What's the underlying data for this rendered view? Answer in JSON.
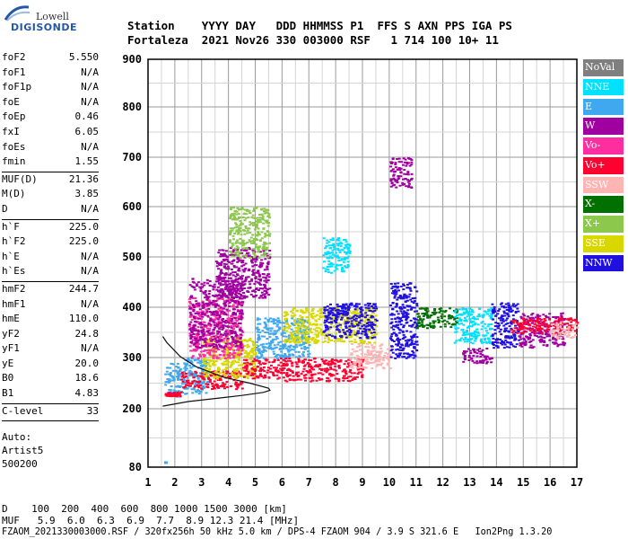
{
  "logo": {
    "brand": "Lowell",
    "product": "DIGISONDE"
  },
  "header": {
    "row1": "Station    YYYY DAY   DDD HHMMSS P1  FFS S AXN PPS IGA PS",
    "row2": "Fortaleza  2021 Nov26 330 003000 RSF   1 714 100 10+ 11"
  },
  "params": [
    {
      "group": [
        {
          "label": "foF2",
          "value": "5.550"
        },
        {
          "label": "foF1",
          "value": "N/A"
        },
        {
          "label": "foF1p",
          "value": "N/A"
        },
        {
          "label": "foE",
          "value": "N/A"
        },
        {
          "label": "foEp",
          "value": "0.46"
        },
        {
          "label": "fxI",
          "value": "6.05"
        },
        {
          "label": "foEs",
          "value": "N/A"
        },
        {
          "label": "fmin",
          "value": "1.55"
        }
      ]
    },
    {
      "group": [
        {
          "label": "MUF(D)",
          "value": "21.36"
        },
        {
          "label": "M(D)",
          "value": "3.85"
        },
        {
          "label": "D",
          "value": "N/A"
        }
      ]
    },
    {
      "group": [
        {
          "label": "h`F",
          "value": "225.0"
        },
        {
          "label": "h`F2",
          "value": "225.0"
        },
        {
          "label": "h`E",
          "value": "N/A"
        },
        {
          "label": "h`Es",
          "value": "N/A"
        }
      ]
    },
    {
      "group": [
        {
          "label": "hmF2",
          "value": "244.7"
        },
        {
          "label": "hmF1",
          "value": "N/A"
        },
        {
          "label": "hmE",
          "value": "110.0"
        },
        {
          "label": "yF2",
          "value": "24.8"
        },
        {
          "label": "yF1",
          "value": "N/A"
        },
        {
          "label": "yE",
          "value": "20.0"
        },
        {
          "label": "B0",
          "value": "18.6"
        },
        {
          "label": "B1",
          "value": "4.83"
        }
      ]
    },
    {
      "group": [
        {
          "label": "C-level",
          "value": "33"
        }
      ]
    }
  ],
  "autoscale": {
    "line1": "Auto:",
    "line2": "Artist5",
    "line3": "500200"
  },
  "legend": [
    {
      "label": "NoVal",
      "color": "#7f7f7f"
    },
    {
      "label": "NNE",
      "color": "#00e0ff"
    },
    {
      "label": "E",
      "color": "#3fa8ef"
    },
    {
      "label": "W",
      "color": "#a000a0"
    },
    {
      "label": "Vo-",
      "color": "#ff2ea0"
    },
    {
      "label": "Vo+",
      "color": "#ff0030"
    },
    {
      "label": "SSW",
      "color": "#ffb4b4"
    },
    {
      "label": "X-",
      "color": "#007000"
    },
    {
      "label": "X+",
      "color": "#8cc84c"
    },
    {
      "label": "SSE",
      "color": "#d8d800"
    },
    {
      "label": "NNW",
      "color": "#2010e0"
    }
  ],
  "footer": {
    "d_row": "D    100  200  400  600  800 1000 1500 3000 [km]",
    "muf_row": "MUF   5.9  6.0  6.3  6.9  7.7  8.9 12.3 21.4 [MHz]",
    "file_row": "FZAOM_2021330003000.RSF / 320fx256h 50 kHz 5.0 km / DPS-4 FZAOM 904 / 3.9 S 321.6 E   Ion2Png 1.3.20"
  },
  "chart_data": {
    "type": "scatter",
    "x_ticks": [
      1,
      2,
      3,
      4,
      5,
      6,
      7,
      8,
      9,
      10,
      11,
      12,
      13,
      14,
      15,
      16,
      17
    ],
    "y_ticks": [
      80,
      200,
      300,
      400,
      500,
      600,
      700,
      800,
      900
    ],
    "xlim": [
      1,
      17
    ],
    "ylim": [
      80,
      900
    ],
    "grid": true,
    "profile_curve": [
      [
        1.55,
        205
      ],
      [
        2.5,
        214
      ],
      [
        3.5,
        220
      ],
      [
        4.5,
        226
      ],
      [
        5.3,
        232
      ],
      [
        5.55,
        236
      ],
      [
        5.5,
        240
      ],
      [
        4.8,
        250
      ],
      [
        3.8,
        262
      ],
      [
        2.8,
        282
      ],
      [
        2.2,
        302
      ],
      [
        1.7,
        330
      ],
      [
        1.55,
        342
      ]
    ],
    "blob_regions": [
      {
        "x": [
          1.6,
          2.3
        ],
        "y": [
          225,
          290
        ],
        "color": "#3fa8ef"
      },
      {
        "x": [
          1.6,
          2.2
        ],
        "y": [
          226,
          234
        ],
        "color": "#ff0030"
      },
      {
        "x": [
          2.3,
          3.2
        ],
        "y": [
          230,
          300
        ],
        "color": "#3fa8ef"
      },
      {
        "x": [
          2.2,
          4.5
        ],
        "y": [
          240,
          275
        ],
        "color": "#ff0030"
      },
      {
        "x": [
          3.0,
          5.0
        ],
        "y": [
          260,
          340
        ],
        "color": "#d8d800"
      },
      {
        "x": [
          2.5,
          4.5
        ],
        "y": [
          300,
          420
        ],
        "color": "#ff2ea0"
      },
      {
        "x": [
          2.5,
          4.5
        ],
        "y": [
          320,
          460
        ],
        "color": "#a000a0"
      },
      {
        "x": [
          3.5,
          5.5
        ],
        "y": [
          420,
          520
        ],
        "color": "#a000a0"
      },
      {
        "x": [
          4.0,
          5.5
        ],
        "y": [
          500,
          600
        ],
        "color": "#8cc84c"
      },
      {
        "x": [
          4.5,
          6.0
        ],
        "y": [
          260,
          300
        ],
        "color": "#ff0030"
      },
      {
        "x": [
          5.0,
          7.0
        ],
        "y": [
          300,
          380
        ],
        "color": "#3fa8ef"
      },
      {
        "x": [
          6.0,
          9.0
        ],
        "y": [
          255,
          300
        ],
        "color": "#ff0030"
      },
      {
        "x": [
          6.0,
          9.5
        ],
        "y": [
          330,
          400
        ],
        "color": "#d8d800"
      },
      {
        "x": [
          7.5,
          9.5
        ],
        "y": [
          340,
          410
        ],
        "color": "#2010e0"
      },
      {
        "x": [
          7.5,
          8.5
        ],
        "y": [
          470,
          540
        ],
        "color": "#00e0ff"
      },
      {
        "x": [
          8.5,
          10.0
        ],
        "y": [
          280,
          330
        ],
        "color": "#ffb4b4"
      },
      {
        "x": [
          10.0,
          11.0
        ],
        "y": [
          300,
          450
        ],
        "color": "#2010e0"
      },
      {
        "x": [
          10.0,
          10.8
        ],
        "y": [
          640,
          700
        ],
        "color": "#a000a0"
      },
      {
        "x": [
          11.0,
          12.5
        ],
        "y": [
          360,
          400
        ],
        "color": "#007000"
      },
      {
        "x": [
          12.4,
          13.8
        ],
        "y": [
          330,
          400
        ],
        "color": "#00e0ff"
      },
      {
        "x": [
          12.7,
          13.8
        ],
        "y": [
          290,
          320
        ],
        "color": "#a000a0"
      },
      {
        "x": [
          13.8,
          14.8
        ],
        "y": [
          320,
          410
        ],
        "color": "#2010e0"
      },
      {
        "x": [
          14.8,
          16.5
        ],
        "y": [
          320,
          390
        ],
        "color": "#a000a0"
      },
      {
        "x": [
          14.5,
          17.0
        ],
        "y": [
          350,
          380
        ],
        "color": "#ff0030"
      },
      {
        "x": [
          16.0,
          17.0
        ],
        "y": [
          340,
          370
        ],
        "color": "#ffb4b4"
      }
    ]
  }
}
